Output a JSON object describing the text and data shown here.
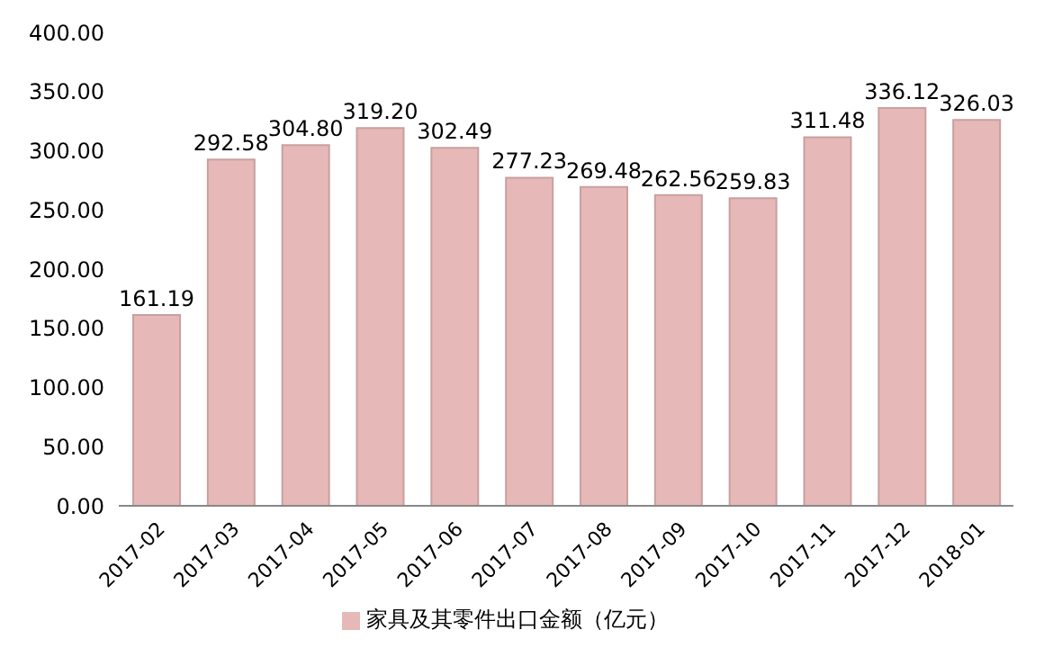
{
  "chart_data": {
    "type": "bar",
    "categories": [
      "2017-02",
      "2017-03",
      "2017-04",
      "2017-05",
      "2017-06",
      "2017-07",
      "2017-08",
      "2017-09",
      "2017-10",
      "2017-11",
      "2017-12",
      "2018-01"
    ],
    "series": [
      {
        "name": "家具及其零件出口金额（亿元）",
        "color": "#e6b9b8",
        "values": [
          161.19,
          292.58,
          304.8,
          319.2,
          302.49,
          277.23,
          269.48,
          262.56,
          259.83,
          311.48,
          336.12,
          326.03
        ]
      }
    ],
    "value_labels": [
      "161.19",
      "292.58",
      "304.80",
      "319.20",
      "302.49",
      "277.23",
      "269.48",
      "262.56",
      "259.83",
      "311.48",
      "336.12",
      "326.03"
    ],
    "ylim": [
      0,
      400
    ],
    "yticks": [
      {
        "value": 0,
        "label": "0.00"
      },
      {
        "value": 50,
        "label": "50.00"
      },
      {
        "value": 100,
        "label": "100.00"
      },
      {
        "value": 150,
        "label": "150.00"
      },
      {
        "value": 200,
        "label": "200.00"
      },
      {
        "value": 250,
        "label": "250.00"
      },
      {
        "value": 300,
        "label": "300.00"
      },
      {
        "value": 350,
        "label": "350.00"
      },
      {
        "value": 400,
        "label": "400.00"
      }
    ],
    "grid": false,
    "legend": "bottom"
  }
}
